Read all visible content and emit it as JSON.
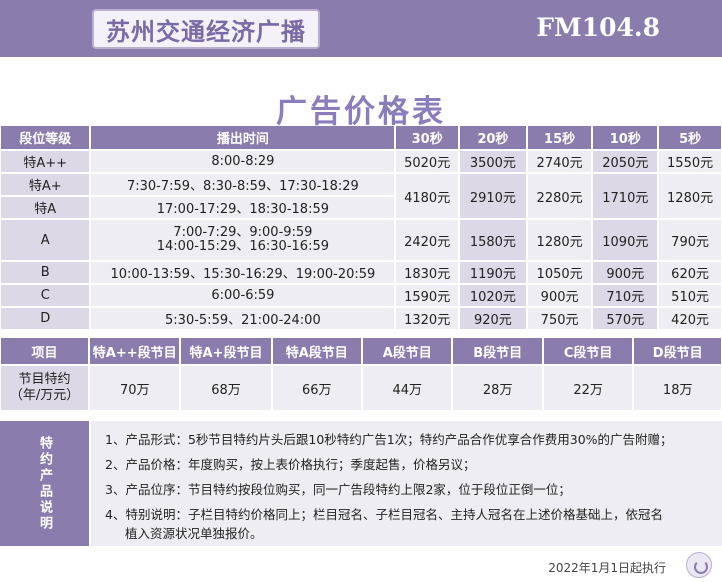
{
  "header": {
    "station": "苏州交通经济广播",
    "frequency": "FM104.8"
  },
  "title": "广告价格表",
  "price_table": {
    "headers": [
      "段位等级",
      "播出时间",
      "30秒",
      "20秒",
      "15秒",
      "10秒",
      "5秒"
    ],
    "rows": [
      {
        "level": "特A++",
        "time": [
          "8:00-8:29"
        ],
        "prices": [
          "5020元",
          "3500元",
          "2740元",
          "2050元",
          "1550元"
        ]
      },
      {
        "level": "特A+",
        "time": [
          "7:30-7:59、8:30-8:59、17:30-18:29"
        ],
        "prices": [
          "4180元",
          "2910元",
          "2280元",
          "1710元",
          "1280元"
        ]
      },
      {
        "level": "特A",
        "time": [
          "17:00-17:29、18:30-18:59"
        ]
      },
      {
        "level": "A",
        "time": [
          "7:00-7:29、9:00-9:59",
          "14:00-15:29、16:30-16:59"
        ],
        "prices": [
          "2420元",
          "1580元",
          "1280元",
          "1090元",
          "790元"
        ]
      },
      {
        "level": "B",
        "time": [
          "10:00-13:59、15:30-16:29、19:00-20:59"
        ],
        "prices": [
          "1830元",
          "1190元",
          "1050元",
          "900元",
          "620元"
        ]
      },
      {
        "level": "C",
        "time": [
          "6:00-6:59"
        ],
        "prices": [
          "1590元",
          "1020元",
          "900元",
          "710元",
          "510元"
        ]
      },
      {
        "level": "D",
        "time": [
          "5:30-5:59、21:00-24:00"
        ],
        "prices": [
          "1320元",
          "920元",
          "750元",
          "570元",
          "420元"
        ]
      }
    ]
  },
  "sponsor_table": {
    "headers": [
      "项目",
      "特A++段节目",
      "特A+段节目",
      "特A段节目",
      "A段节目",
      "B段节目",
      "C段节目",
      "D段节目"
    ],
    "label": [
      "节目特约",
      "（年/万元）"
    ],
    "values": [
      "70万",
      "68万",
      "66万",
      "44万",
      "28万",
      "22万",
      "18万"
    ]
  },
  "notes": {
    "label": "特约产品说明",
    "items": [
      "1、产品形式：5秒节目特约片头后跟10秒特约广告1次；特约产品合作优享合作费用30%的广告附赠；",
      "2、产品价格：年度购买，按上表价格执行；季度起售，价格另议；",
      "3、产品位序：节目特约按段位购买，同一广告段特约上限2家，位于段位正倒一位；",
      "4、特别说明：子栏目特约价格同上；栏目冠名、子栏目冠名、主持人冠名在上述价格基础上，依冠名"
    ],
    "item4_cont": "植入资源状况单独报价。"
  },
  "footer": {
    "effective": "2022年1月1日起执行"
  },
  "colors": {
    "accent": "#8a7dae",
    "title": "#8b7cbb",
    "cell_light": "#efedf4",
    "cell_shade": "#dcd8e6"
  }
}
